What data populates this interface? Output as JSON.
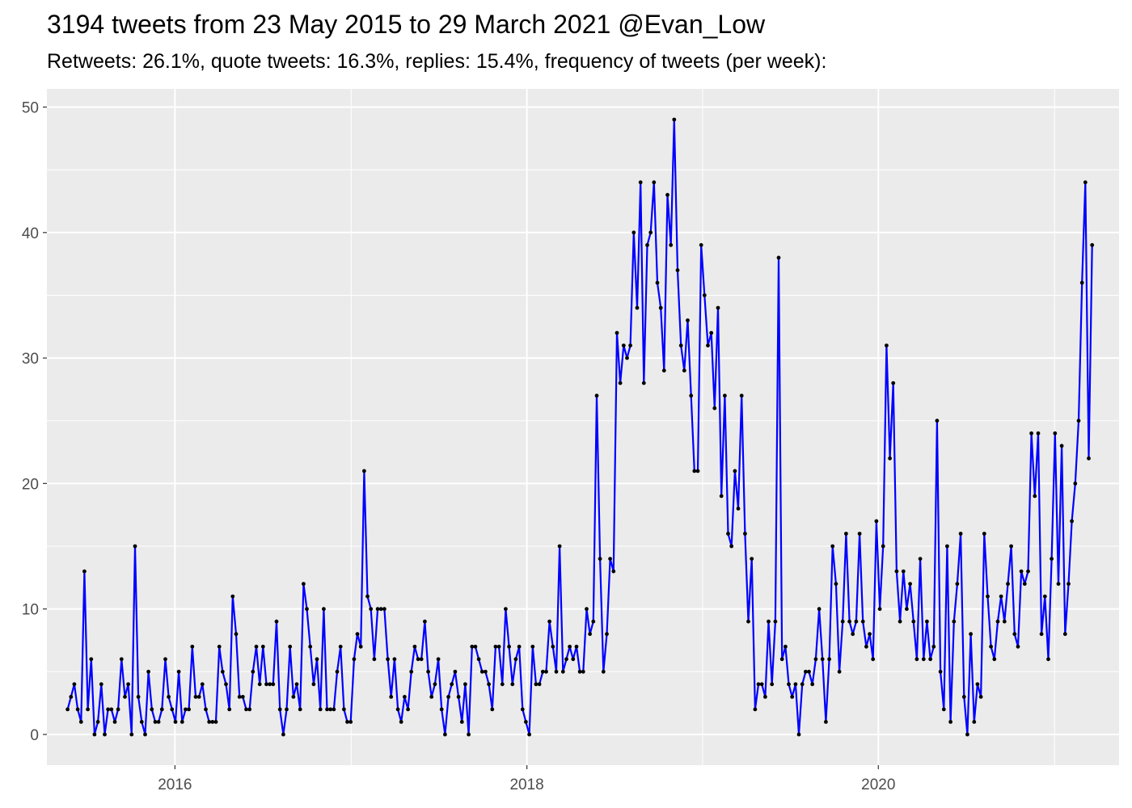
{
  "title": "3194 tweets from 23 May 2015 to 29 March 2021 @Evan_Low",
  "subtitle": "Retweets: 26.1%, quote tweets: 16.3%, replies: 15.4%, frequency of tweets (per week):",
  "chart_data": {
    "type": "line",
    "title": "3194 tweets from 23 May 2015 to 29 March 2021 @Evan_Low",
    "subtitle": "Retweets: 26.1%, quote tweets: 16.3%, replies: 15.4%, frequency of tweets (per week):",
    "xlabel": "",
    "ylabel": "",
    "x_start": "2015-05-23",
    "x_step_days": 7,
    "xlim": [
      "2015-04-10",
      "2021-05-15"
    ],
    "ylim": [
      -2.45,
      51.45
    ],
    "x_tick_labels": [
      "2016",
      "2018",
      "2020"
    ],
    "y_tick_labels": [
      "0",
      "10",
      "20",
      "30",
      "40",
      "50"
    ],
    "grid": true,
    "background": "#ebebeb",
    "line_color": "#0000ff",
    "point_color": "#000000",
    "values": [
      2,
      3,
      4,
      2,
      1,
      13,
      2,
      6,
      0,
      1,
      4,
      0,
      2,
      2,
      1,
      2,
      6,
      3,
      4,
      0,
      15,
      3,
      1,
      0,
      5,
      2,
      1,
      1,
      2,
      6,
      3,
      2,
      1,
      5,
      1,
      2,
      2,
      7,
      3,
      3,
      4,
      2,
      1,
      1,
      1,
      7,
      5,
      4,
      2,
      11,
      8,
      3,
      3,
      2,
      2,
      5,
      7,
      4,
      7,
      4,
      4,
      4,
      9,
      2,
      0,
      2,
      7,
      3,
      4,
      2,
      12,
      10,
      7,
      4,
      6,
      2,
      10,
      2,
      2,
      2,
      5,
      7,
      2,
      1,
      1,
      6,
      8,
      7,
      21,
      11,
      10,
      6,
      10,
      10,
      10,
      6,
      3,
      6,
      2,
      1,
      3,
      2,
      5,
      7,
      6,
      6,
      9,
      5,
      3,
      4,
      6,
      2,
      0,
      3,
      4,
      5,
      3,
      1,
      4,
      0,
      7,
      7,
      6,
      5,
      5,
      4,
      2,
      7,
      7,
      4,
      10,
      7,
      4,
      6,
      7,
      2,
      1,
      0,
      7,
      4,
      4,
      5,
      5,
      9,
      7,
      5,
      15,
      5,
      6,
      7,
      6,
      7,
      5,
      5,
      10,
      8,
      9,
      27,
      14,
      5,
      8,
      14,
      13,
      32,
      28,
      31,
      30,
      31,
      40,
      34,
      44,
      28,
      39,
      40,
      44,
      36,
      34,
      29,
      43,
      39,
      49,
      37,
      31,
      29,
      33,
      27,
      21,
      21,
      39,
      35,
      31,
      32,
      26,
      34,
      19,
      27,
      16,
      15,
      21,
      18,
      27,
      16,
      9,
      14,
      2,
      4,
      4,
      3,
      9,
      4,
      9,
      38,
      6,
      7,
      4,
      3,
      4,
      0,
      4,
      5,
      5,
      4,
      6,
      10,
      6,
      1,
      6,
      15,
      12,
      5,
      9,
      16,
      9,
      8,
      9,
      16,
      9,
      7,
      8,
      6,
      17,
      10,
      15,
      31,
      22,
      28,
      13,
      9,
      13,
      10,
      12,
      9,
      6,
      14,
      6,
      9,
      6,
      7,
      25,
      5,
      2,
      15,
      1,
      9,
      12,
      16,
      3,
      0,
      8,
      1,
      4,
      3,
      16,
      11,
      7,
      6,
      9,
      11,
      9,
      12,
      15,
      8,
      7,
      13,
      12,
      13,
      24,
      19,
      24,
      8,
      11,
      6,
      14,
      24,
      12,
      23,
      8,
      12,
      17,
      20,
      25,
      36,
      44,
      22,
      39
    ]
  }
}
